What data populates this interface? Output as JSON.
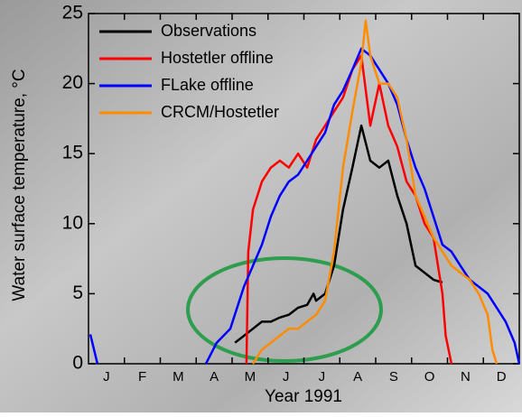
{
  "chart_data": {
    "type": "line",
    "y_label": "Water surface temperature, °C",
    "x_label": "Year 1991",
    "categories": [
      "J",
      "F",
      "M",
      "A",
      "M",
      "J",
      "J",
      "A",
      "S",
      "O",
      "N",
      "D"
    ],
    "xlim": [
      0,
      12
    ],
    "ylim": [
      0,
      25
    ],
    "yticks": [
      0,
      5,
      10,
      15,
      20,
      25
    ],
    "legend": "top-left",
    "series": [
      {
        "name": "Observations",
        "color": "#000000",
        "x": [
          4.08,
          4.33,
          4.58,
          4.83,
          5.08,
          5.33,
          5.58,
          5.84,
          6.09,
          6.27,
          6.34,
          6.59,
          6.84,
          7.09,
          7.35,
          7.6,
          7.85,
          8.1,
          8.35,
          8.6,
          8.86,
          9.11,
          9.36,
          9.61,
          9.86
        ],
        "values": [
          1.5,
          2,
          2.5,
          3,
          3,
          3.3,
          3.5,
          4,
          4.2,
          5,
          4.5,
          5,
          7,
          11,
          14,
          17,
          14.5,
          14,
          14.5,
          12,
          10,
          7,
          6.5,
          6,
          5.8
        ]
      },
      {
        "name": "Hostetler offline",
        "color": "#ff0000",
        "x": [
          4.4,
          4.45,
          4.58,
          4.83,
          5.08,
          5.33,
          5.58,
          5.84,
          6.09,
          6.34,
          6.59,
          6.84,
          7.09,
          7.35,
          7.6,
          7.85,
          8.1,
          8.35,
          8.6,
          8.86,
          9.11,
          9.36,
          9.61,
          9.86,
          9.95,
          10.11
        ],
        "values": [
          0,
          8,
          11,
          13,
          14,
          14.5,
          14,
          15,
          14,
          16,
          17,
          18,
          19,
          21,
          22,
          17,
          20,
          17,
          15.5,
          13,
          12,
          10,
          9,
          5,
          2,
          0
        ]
      },
      {
        "name": "FLake offline",
        "color": "#0000ff",
        "x": [
          0.05,
          0.25,
          1.5,
          3.27,
          3.57,
          3.95,
          4.33,
          4.58,
          4.83,
          5.08,
          5.33,
          5.58,
          5.84,
          6.09,
          6.34,
          6.59,
          6.84,
          7.09,
          7.35,
          7.6,
          7.85,
          8.1,
          8.35,
          8.6,
          8.86,
          9.11,
          9.36,
          9.61,
          9.86,
          10.11,
          10.36,
          10.62,
          10.87,
          11.12,
          11.37,
          11.62,
          11.87,
          12.0
        ],
        "values": [
          2.1,
          0,
          null,
          0,
          1.5,
          2.5,
          5.5,
          7,
          8.5,
          10.5,
          12,
          13,
          13.5,
          14.5,
          15.5,
          16.5,
          18.5,
          19.5,
          21,
          22.5,
          22,
          21,
          20,
          18.5,
          16,
          14,
          12.5,
          10.5,
          8.5,
          8,
          7,
          6,
          5.5,
          5,
          4,
          3,
          1.5,
          0
        ]
      },
      {
        "name": "CRCM/Hostetler",
        "color": "#ff8c00",
        "x": [
          4.58,
          4.83,
          5.08,
          5.33,
          5.58,
          5.84,
          6.09,
          6.34,
          6.59,
          6.84,
          7.09,
          7.35,
          7.6,
          7.72,
          7.85,
          8.1,
          8.35,
          8.6,
          8.86,
          9.11,
          9.36,
          9.61,
          9.86,
          10.11,
          10.36,
          10.62,
          10.87,
          11.12,
          11.25,
          11.37
        ],
        "values": [
          0,
          1,
          1.5,
          2,
          2.5,
          2.5,
          3,
          3.5,
          4.5,
          8,
          14,
          18,
          21.5,
          24.5,
          22,
          20,
          20,
          19,
          16,
          12,
          10.5,
          9,
          8,
          7,
          6.5,
          6,
          5,
          3.5,
          1,
          0
        ]
      }
    ]
  }
}
